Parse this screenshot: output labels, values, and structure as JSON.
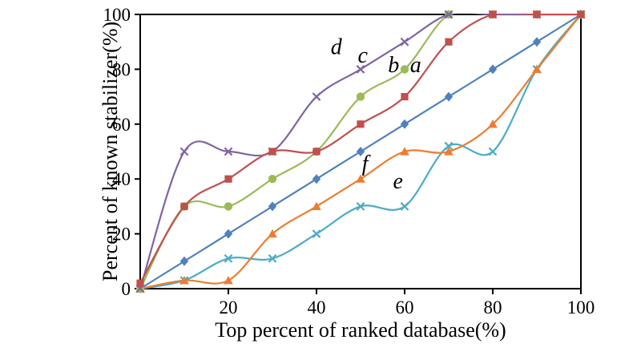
{
  "figure": {
    "background": "#ffffff",
    "axis_color": "#000000"
  },
  "chart_data": {
    "type": "line",
    "title": "",
    "xlabel": "Top percent of ranked database(%)",
    "ylabel": "Percent of known stabilizer(%)",
    "xlim": [
      0,
      100
    ],
    "ylim": [
      0,
      100
    ],
    "x_tick_labels": [
      20,
      40,
      60,
      80,
      100
    ],
    "y_tick_labels": [
      0,
      20,
      40,
      60,
      80,
      100
    ],
    "grid": false,
    "legend_position": "none",
    "x": [
      0,
      10,
      20,
      30,
      40,
      50,
      60,
      70,
      80,
      90,
      100
    ],
    "series": [
      {
        "name": "a",
        "color": "#4F81BD",
        "marker": "diamond",
        "values": [
          0,
          10,
          20,
          30,
          40,
          50,
          60,
          70,
          80,
          90,
          100
        ]
      },
      {
        "name": "b",
        "color": "#C0504D",
        "marker": "square",
        "values": [
          2,
          30,
          40,
          50,
          50,
          60,
          70,
          90,
          100,
          100,
          100
        ]
      },
      {
        "name": "c",
        "color": "#9BBB59",
        "marker": "circle",
        "values": [
          0,
          30,
          30,
          40,
          50,
          70,
          80,
          100,
          100,
          100,
          100
        ]
      },
      {
        "name": "d",
        "color": "#8064A2",
        "marker": "x",
        "values": [
          0,
          50,
          50,
          50,
          70,
          80,
          90,
          100,
          100,
          100,
          100
        ]
      },
      {
        "name": "e",
        "color": "#4BACC6",
        "marker": "x",
        "values": [
          0,
          3,
          11,
          11,
          20,
          30,
          30,
          52,
          50,
          80,
          100
        ]
      },
      {
        "name": "f",
        "color": "#ED7D31",
        "marker": "triangle",
        "values": [
          0,
          3,
          3,
          20,
          30,
          40,
          50,
          50,
          60,
          80,
          100
        ]
      }
    ],
    "draw_order": [
      "a",
      "e",
      "f",
      "c",
      "d",
      "b"
    ],
    "annotations": [
      {
        "label": "d",
        "x": 44.5,
        "y": 85.5
      },
      {
        "label": "c",
        "x": 50.5,
        "y": 82.5
      },
      {
        "label": "b",
        "x": 57.5,
        "y": 79
      },
      {
        "label": "a",
        "x": 62.5,
        "y": 79
      },
      {
        "label": "f",
        "x": 51,
        "y": 43
      },
      {
        "label": "e",
        "x": 58.5,
        "y": 36.5
      }
    ]
  }
}
